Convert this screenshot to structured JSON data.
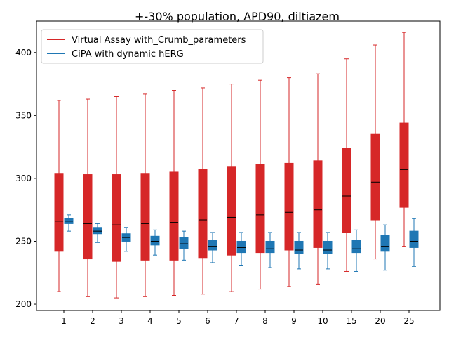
{
  "chart_data": {
    "type": "box",
    "title": "+-30% population, APD90, diltiazem",
    "xlabel": "",
    "ylabel": "",
    "categories": [
      "1",
      "2",
      "3",
      "4",
      "5",
      "6",
      "7",
      "8",
      "9",
      "10",
      "15",
      "20",
      "25"
    ],
    "ylim": [
      195,
      425
    ],
    "yticks": [
      200,
      250,
      300,
      350,
      400
    ],
    "grid": false,
    "legend": "top-left",
    "series": [
      {
        "name": "Virtual Assay with_Crumb_parameters",
        "color": "#d62728",
        "boxes": [
          {
            "whislo": 210,
            "q1": 242,
            "med": 266,
            "q3": 304,
            "whishi": 362
          },
          {
            "whislo": 206,
            "q1": 236,
            "med": 264,
            "q3": 303,
            "whishi": 363
          },
          {
            "whislo": 205,
            "q1": 234,
            "med": 263,
            "q3": 303,
            "whishi": 365
          },
          {
            "whislo": 206,
            "q1": 235,
            "med": 264,
            "q3": 304,
            "whishi": 367
          },
          {
            "whislo": 207,
            "q1": 235,
            "med": 265,
            "q3": 305,
            "whishi": 370
          },
          {
            "whislo": 208,
            "q1": 237,
            "med": 267,
            "q3": 307,
            "whishi": 372
          },
          {
            "whislo": 210,
            "q1": 239,
            "med": 269,
            "q3": 309,
            "whishi": 375
          },
          {
            "whislo": 212,
            "q1": 241,
            "med": 271,
            "q3": 311,
            "whishi": 378
          },
          {
            "whislo": 214,
            "q1": 243,
            "med": 273,
            "q3": 312,
            "whishi": 380
          },
          {
            "whislo": 216,
            "q1": 245,
            "med": 275,
            "q3": 314,
            "whishi": 383
          },
          {
            "whislo": 226,
            "q1": 257,
            "med": 286,
            "q3": 324,
            "whishi": 395
          },
          {
            "whislo": 236,
            "q1": 267,
            "med": 297,
            "q3": 335,
            "whishi": 406
          },
          {
            "whislo": 246,
            "q1": 277,
            "med": 307,
            "q3": 344,
            "whishi": 416
          }
        ]
      },
      {
        "name": "CiPA with dynamic hERG",
        "color": "#1f77b4",
        "boxes": [
          {
            "whislo": 258,
            "q1": 264,
            "med": 266,
            "q3": 268,
            "whishi": 271
          },
          {
            "whislo": 249,
            "q1": 256,
            "med": 258,
            "q3": 261,
            "whishi": 264
          },
          {
            "whislo": 242,
            "q1": 250,
            "med": 253,
            "q3": 256,
            "whishi": 261
          },
          {
            "whislo": 239,
            "q1": 247,
            "med": 250,
            "q3": 254,
            "whishi": 259
          },
          {
            "whislo": 235,
            "q1": 244,
            "med": 248,
            "q3": 253,
            "whishi": 258
          },
          {
            "whislo": 233,
            "q1": 243,
            "med": 246,
            "q3": 251,
            "whishi": 257
          },
          {
            "whislo": 231,
            "q1": 241,
            "med": 245,
            "q3": 250,
            "whishi": 257
          },
          {
            "whislo": 229,
            "q1": 241,
            "med": 244,
            "q3": 250,
            "whishi": 257
          },
          {
            "whislo": 228,
            "q1": 240,
            "med": 243,
            "q3": 250,
            "whishi": 257
          },
          {
            "whislo": 228,
            "q1": 240,
            "med": 243,
            "q3": 250,
            "whishi": 257
          },
          {
            "whislo": 226,
            "q1": 241,
            "med": 244,
            "q3": 251,
            "whishi": 259
          },
          {
            "whislo": 227,
            "q1": 242,
            "med": 246,
            "q3": 255,
            "whishi": 263
          },
          {
            "whislo": 230,
            "q1": 245,
            "med": 250,
            "q3": 258,
            "whishi": 268
          }
        ]
      }
    ]
  }
}
